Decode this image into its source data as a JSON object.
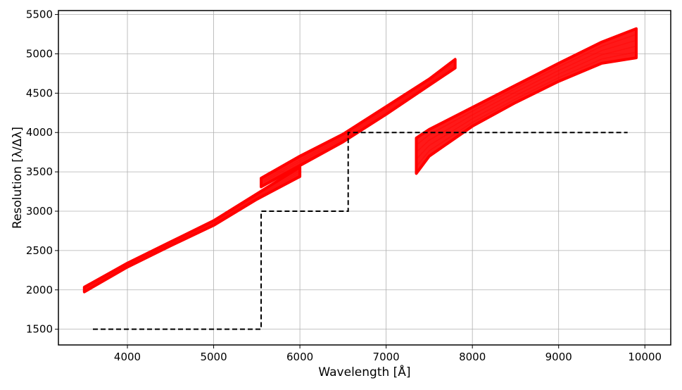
{
  "chart_data": {
    "type": "line",
    "title": "",
    "xlabel": "Wavelength [Å]",
    "ylabel": "Resolution [λ/Δλ]",
    "xlim": [
      3200,
      10300
    ],
    "ylim": [
      1300,
      5550
    ],
    "xticks": [
      4000,
      5000,
      6000,
      7000,
      8000,
      9000,
      10000
    ],
    "yticks": [
      1500,
      2000,
      2500,
      3000,
      3500,
      4000,
      4500,
      5000,
      5500
    ],
    "grid": true,
    "colors": {
      "band": "#ff0000",
      "requirement": "#000000",
      "grid": "#b0b0b0"
    },
    "series": [
      {
        "style": "red-band",
        "x": [
          3500,
          4000,
          4500,
          5000,
          5500,
          6000
        ],
        "y_low": [
          1975,
          2290,
          2560,
          2820,
          3150,
          3440
        ],
        "y_high": [
          2035,
          2340,
          2610,
          2880,
          3220,
          3560
        ]
      },
      {
        "style": "red-band",
        "x": [
          5550,
          6000,
          6500,
          7000,
          7500,
          7800
        ],
        "y_low": [
          3310,
          3580,
          3880,
          4230,
          4600,
          4820
        ],
        "y_high": [
          3420,
          3700,
          3980,
          4330,
          4680,
          4930
        ]
      },
      {
        "style": "red-band",
        "x": [
          7350,
          7500,
          8000,
          8500,
          9000,
          9500,
          9900
        ],
        "y_low": [
          3480,
          3700,
          4080,
          4380,
          4650,
          4880,
          4950
        ],
        "y_high": [
          3930,
          4040,
          4320,
          4600,
          4880,
          5150,
          5320
        ]
      },
      {
        "style": "dashed-requirement",
        "x": [
          3600,
          5550,
          5550,
          6560,
          6560,
          9800
        ],
        "y": [
          1500,
          1500,
          3000,
          3000,
          4000,
          4000
        ]
      }
    ]
  }
}
